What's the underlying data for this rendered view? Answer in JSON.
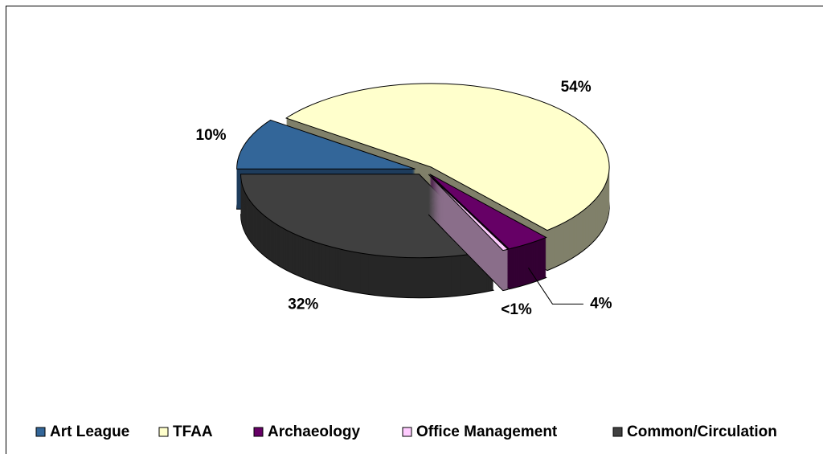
{
  "chart_data": {
    "type": "pie",
    "three_d": true,
    "exploded": true,
    "categories": [
      "Art League",
      "TFAA",
      "Archaeology",
      "Office Management",
      "Common/Circulation"
    ],
    "values": [
      10,
      54,
      4,
      0.5,
      32
    ],
    "value_labels": [
      "10%",
      "54%",
      "4%",
      "<1%",
      "32%"
    ],
    "colors": [
      "#336699",
      "#ffffcc",
      "#660066",
      "#ffccff",
      "#404040"
    ],
    "side_colors": [
      "#1f3d5c",
      "#80806a",
      "#330033",
      "#8a6e8a",
      "#262626"
    ],
    "legend": "bottom"
  }
}
